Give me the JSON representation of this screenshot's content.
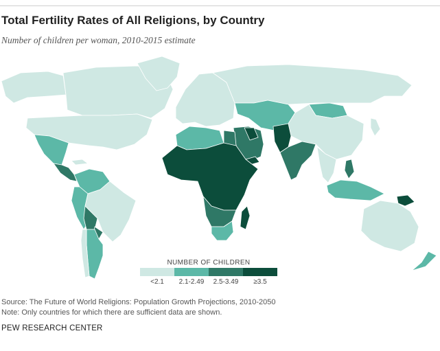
{
  "title": "Total Fertility Rates of All Religions, by Country",
  "subtitle": "Number of children per woman, 2010-2015 estimate",
  "legend": {
    "title": "NUMBER OF CHILDREN",
    "items": [
      {
        "label": "<2.1",
        "color": "#cfe8e3"
      },
      {
        "label": "2.1-2.49",
        "color": "#5cb8a7"
      },
      {
        "label": "2.5-3.49",
        "color": "#2f7866"
      },
      {
        "label": "≥3.5",
        "color": "#0c4d3b"
      }
    ]
  },
  "source": "Source: The Future of World Religions: Population Growth Projections, 2010-2050",
  "note": "Note: Only countries for which there are sufficient data are shown.",
  "organization": "PEW RESEARCH CENTER",
  "map_regions": [
    {
      "name": "alaska",
      "category": "<2.1"
    },
    {
      "name": "canada",
      "category": "<2.1"
    },
    {
      "name": "greenland",
      "category": "<2.1"
    },
    {
      "name": "usa",
      "category": "<2.1"
    },
    {
      "name": "mexico",
      "category": "2.1-2.49"
    },
    {
      "name": "central-america",
      "category": "2.5-3.49"
    },
    {
      "name": "cuba",
      "category": "<2.1"
    },
    {
      "name": "colombia-venezuela",
      "category": "2.1-2.49"
    },
    {
      "name": "peru-ecuador",
      "category": "2.1-2.49"
    },
    {
      "name": "brazil",
      "category": "<2.1"
    },
    {
      "name": "bolivia",
      "category": "2.5-3.49"
    },
    {
      "name": "paraguay",
      "category": "2.5-3.49"
    },
    {
      "name": "argentina",
      "category": "2.1-2.49"
    },
    {
      "name": "chile",
      "category": "<2.1"
    },
    {
      "name": "europe",
      "category": "<2.1"
    },
    {
      "name": "russia",
      "category": "<2.1"
    },
    {
      "name": "kazakhstan-central-asia",
      "category": "2.1-2.49"
    },
    {
      "name": "mongolia",
      "category": "2.1-2.49"
    },
    {
      "name": "china",
      "category": "<2.1"
    },
    {
      "name": "north-africa",
      "category": "2.1-2.49"
    },
    {
      "name": "egypt",
      "category": "2.5-3.49"
    },
    {
      "name": "sub-saharan-africa",
      "category": "≥3.5"
    },
    {
      "name": "southern-africa",
      "category": "2.5-3.49"
    },
    {
      "name": "south-africa",
      "category": "2.1-2.49"
    },
    {
      "name": "madagascar",
      "category": "≥3.5"
    },
    {
      "name": "middle-east",
      "category": "2.5-3.49"
    },
    {
      "name": "iraq-yemen",
      "category": "≥3.5"
    },
    {
      "name": "afghanistan-pakistan",
      "category": "≥3.5"
    },
    {
      "name": "india",
      "category": "2.5-3.49"
    },
    {
      "name": "southeast-asia",
      "category": "<2.1"
    },
    {
      "name": "philippines",
      "category": "2.5-3.49"
    },
    {
      "name": "indonesia",
      "category": "2.1-2.49"
    },
    {
      "name": "papua-new-guinea",
      "category": "≥3.5"
    },
    {
      "name": "japan",
      "category": "<2.1"
    },
    {
      "name": "australia",
      "category": "<2.1"
    },
    {
      "name": "new-zealand",
      "category": "2.1-2.49"
    }
  ]
}
